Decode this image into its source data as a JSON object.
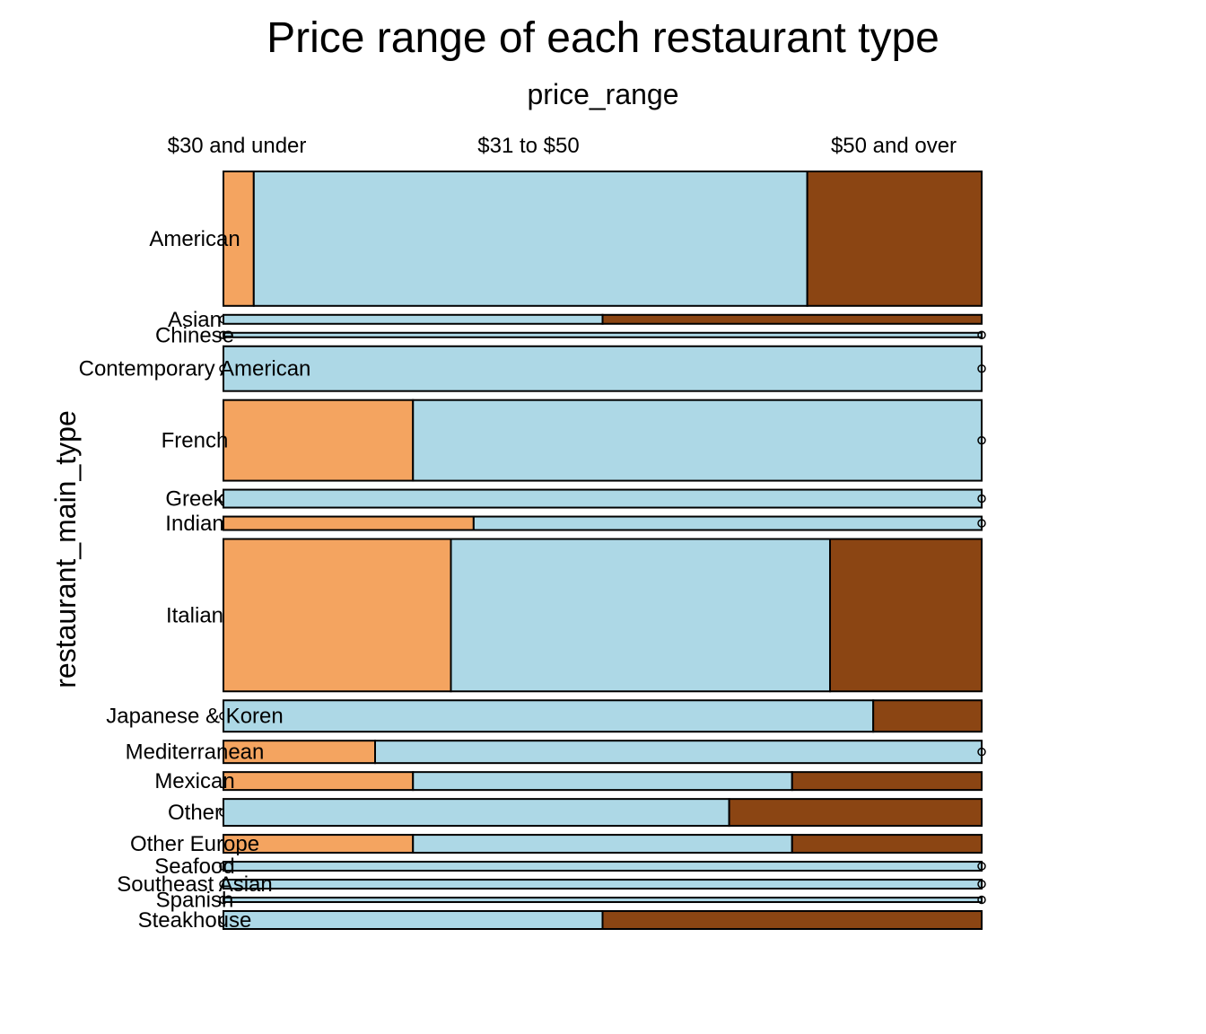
{
  "chart_data": {
    "type": "mosaic",
    "title": "Price range of each restaurant type",
    "xlabel": "price_range",
    "ylabel": "restaurant_main_type",
    "categories": [
      "$30 and under",
      "$31 to $50",
      "$50 and over"
    ],
    "colors": [
      "#F4A460",
      "#ADD8E6",
      "#8B4513"
    ],
    "rows": [
      {
        "label": "American",
        "weight": 30,
        "shares": [
          0.04,
          0.73,
          0.23
        ]
      },
      {
        "label": "Asian",
        "weight": 2,
        "shares": [
          0,
          0.5,
          0.5
        ]
      },
      {
        "label": "Chinese",
        "weight": 1,
        "shares": [
          0,
          1,
          0
        ]
      },
      {
        "label": "Contemporary American",
        "weight": 10,
        "shares": [
          0,
          1,
          0
        ]
      },
      {
        "label": "French",
        "weight": 18,
        "shares": [
          0.25,
          0.75,
          0
        ]
      },
      {
        "label": "Greek",
        "weight": 4,
        "shares": [
          0,
          1,
          0
        ]
      },
      {
        "label": "Indian",
        "weight": 3,
        "shares": [
          0.33,
          0.67,
          0
        ]
      },
      {
        "label": "Italian",
        "weight": 34,
        "shares": [
          0.3,
          0.5,
          0.2
        ]
      },
      {
        "label": "Japanese & Koren",
        "weight": 7,
        "shares": [
          0,
          0.857,
          0.143
        ]
      },
      {
        "label": "Mediterranean",
        "weight": 5,
        "shares": [
          0.2,
          0.8,
          0
        ]
      },
      {
        "label": "Mexican",
        "weight": 4,
        "shares": [
          0.25,
          0.5,
          0.25
        ]
      },
      {
        "label": "Other",
        "weight": 6,
        "shares": [
          0,
          0.667,
          0.333
        ]
      },
      {
        "label": "Other Europe",
        "weight": 4,
        "shares": [
          0.25,
          0.5,
          0.25
        ]
      },
      {
        "label": "Seafood",
        "weight": 2,
        "shares": [
          0,
          1,
          0
        ]
      },
      {
        "label": "Southeast Asian",
        "weight": 2,
        "shares": [
          0,
          1,
          0
        ]
      },
      {
        "label": "Spanish",
        "weight": 1,
        "shares": [
          0,
          1,
          0
        ]
      },
      {
        "label": "Steakhouse",
        "weight": 4,
        "shares": [
          0,
          0.5,
          0.5
        ]
      }
    ]
  }
}
